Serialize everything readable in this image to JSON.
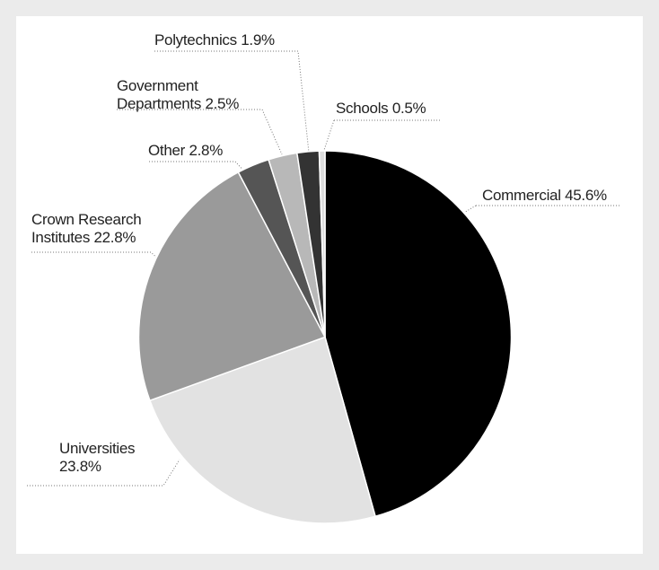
{
  "chart_data": {
    "type": "pie",
    "categories": [
      "Commercial",
      "Universities",
      "Crown Research Institutes",
      "Other",
      "Government Departments",
      "Polytechnics",
      "Schools"
    ],
    "values": [
      45.6,
      23.8,
      22.8,
      2.8,
      2.5,
      1.9,
      0.5
    ],
    "value_labels": [
      "45.6%",
      "23.8%",
      "22.8%",
      "2.8%",
      "2.5%",
      "1.9%",
      "0.5%"
    ],
    "colors": [
      "#000000",
      "#e2e2e2",
      "#9a9a9a",
      "#555555",
      "#b8b8b8",
      "#333333",
      "#dcdcdc"
    ]
  }
}
